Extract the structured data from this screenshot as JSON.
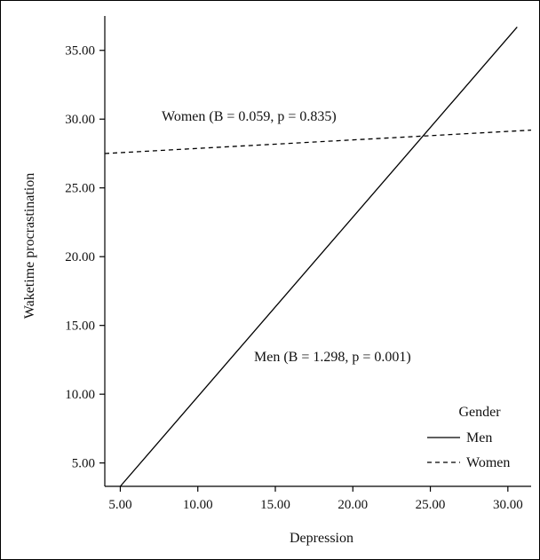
{
  "chart_data": {
    "type": "line",
    "xlabel": "Depression",
    "ylabel": "Waketime procrastination",
    "xlim": [
      4,
      31.5
    ],
    "ylim": [
      3.3,
      37.5
    ],
    "xticks": [
      "5.00",
      "10.00",
      "15.00",
      "20.00",
      "25.00",
      "30.00"
    ],
    "xtick_values": [
      5,
      10,
      15,
      20,
      25,
      30
    ],
    "yticks": [
      "5.00",
      "10.00",
      "15.00",
      "20.00",
      "25.00",
      "30.00",
      "35.00"
    ],
    "ytick_values": [
      5,
      10,
      15,
      20,
      25,
      30,
      35
    ],
    "series": [
      {
        "name": "Men",
        "style": "solid",
        "x": [
          5.0,
          30.6
        ],
        "y": [
          3.3,
          36.7
        ]
      },
      {
        "name": "Women",
        "style": "dashed",
        "x": [
          4.0,
          31.5
        ],
        "y": [
          27.5,
          29.2
        ]
      }
    ],
    "annotations": [
      {
        "text": "Women (B = 0.059, p = 0.835)"
      },
      {
        "text": "Men (B = 1.298, p = 0.001)"
      }
    ],
    "legend": {
      "title": "Gender",
      "position": "bottom-right",
      "items": [
        "Men",
        "Women"
      ]
    }
  }
}
